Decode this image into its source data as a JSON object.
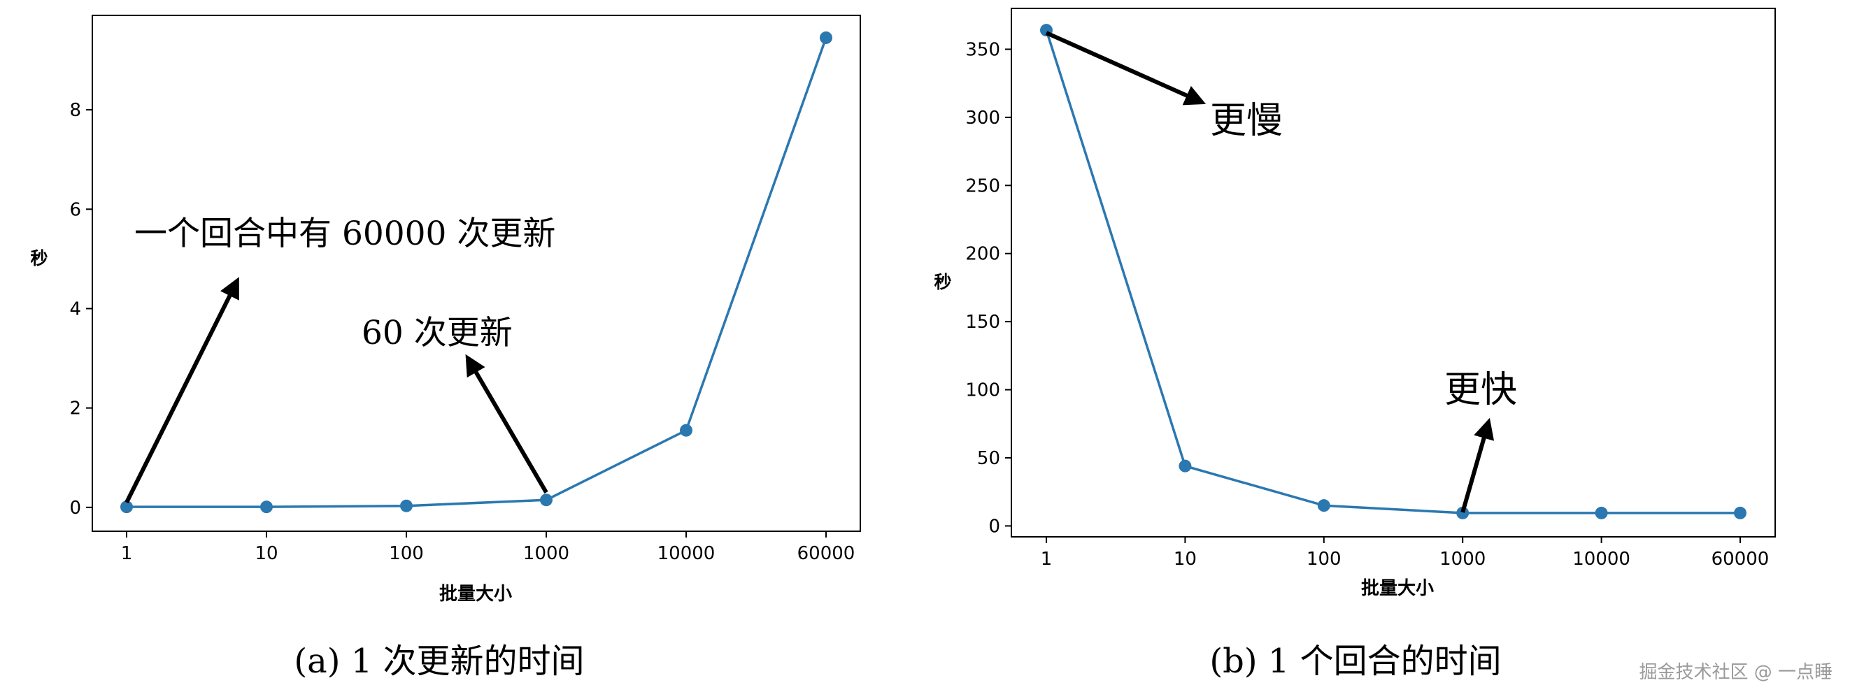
{
  "colors": {
    "series": "#2b78b0",
    "axis": "#000000",
    "annotation": "#000000",
    "watermark": "#9a9a9a"
  },
  "watermark": "掘金技术社区 @ 一点睡",
  "chart_data": [
    {
      "type": "line",
      "categories": [
        "1",
        "10",
        "100",
        "1000",
        "10000",
        "60000"
      ],
      "series": [
        {
          "values": [
            0.01,
            0.01,
            0.03,
            0.15,
            1.55,
            9.45
          ]
        }
      ],
      "xlabel": "批量大小",
      "ylabel": "秒",
      "ylim": [
        -0.48,
        9.9
      ],
      "yticks": [
        0,
        2,
        4,
        6,
        8
      ],
      "caption": "(a) 1 次更新的时间",
      "annotations": [
        {
          "text": "一个回合中有 60000 次更新",
          "arrow_from": {
            "category": "1",
            "value": 0.1
          },
          "arrow_to": {
            "category_index": 0.78,
            "value": 4.5
          }
        },
        {
          "text": "60 次更新",
          "arrow_from": {
            "category": "1000",
            "value": 0.3
          },
          "arrow_to": {
            "category_index": 2.45,
            "value": 2.95
          }
        }
      ],
      "grid": false,
      "legend": "none"
    },
    {
      "type": "line",
      "categories": [
        "1",
        "10",
        "100",
        "1000",
        "10000",
        "60000"
      ],
      "series": [
        {
          "values": [
            364,
            44,
            15,
            9.5,
            9.5,
            9.5
          ]
        }
      ],
      "xlabel": "批量大小",
      "ylabel": "秒",
      "ylim": [
        -8,
        380
      ],
      "yticks": [
        0,
        50,
        100,
        150,
        200,
        250,
        300,
        350
      ],
      "caption": "(b) 1 个回合的时间",
      "annotations": [
        {
          "text": "更慢",
          "arrow_from": {
            "category": "1",
            "value": 362
          },
          "arrow_to": {
            "category_index": 1.1,
            "value": 312
          }
        },
        {
          "text": "更快",
          "arrow_from": {
            "category": "1000",
            "value": 10
          },
          "arrow_to": {
            "category_index": 3.18,
            "value": 74
          }
        }
      ],
      "grid": false,
      "legend": "none"
    }
  ]
}
